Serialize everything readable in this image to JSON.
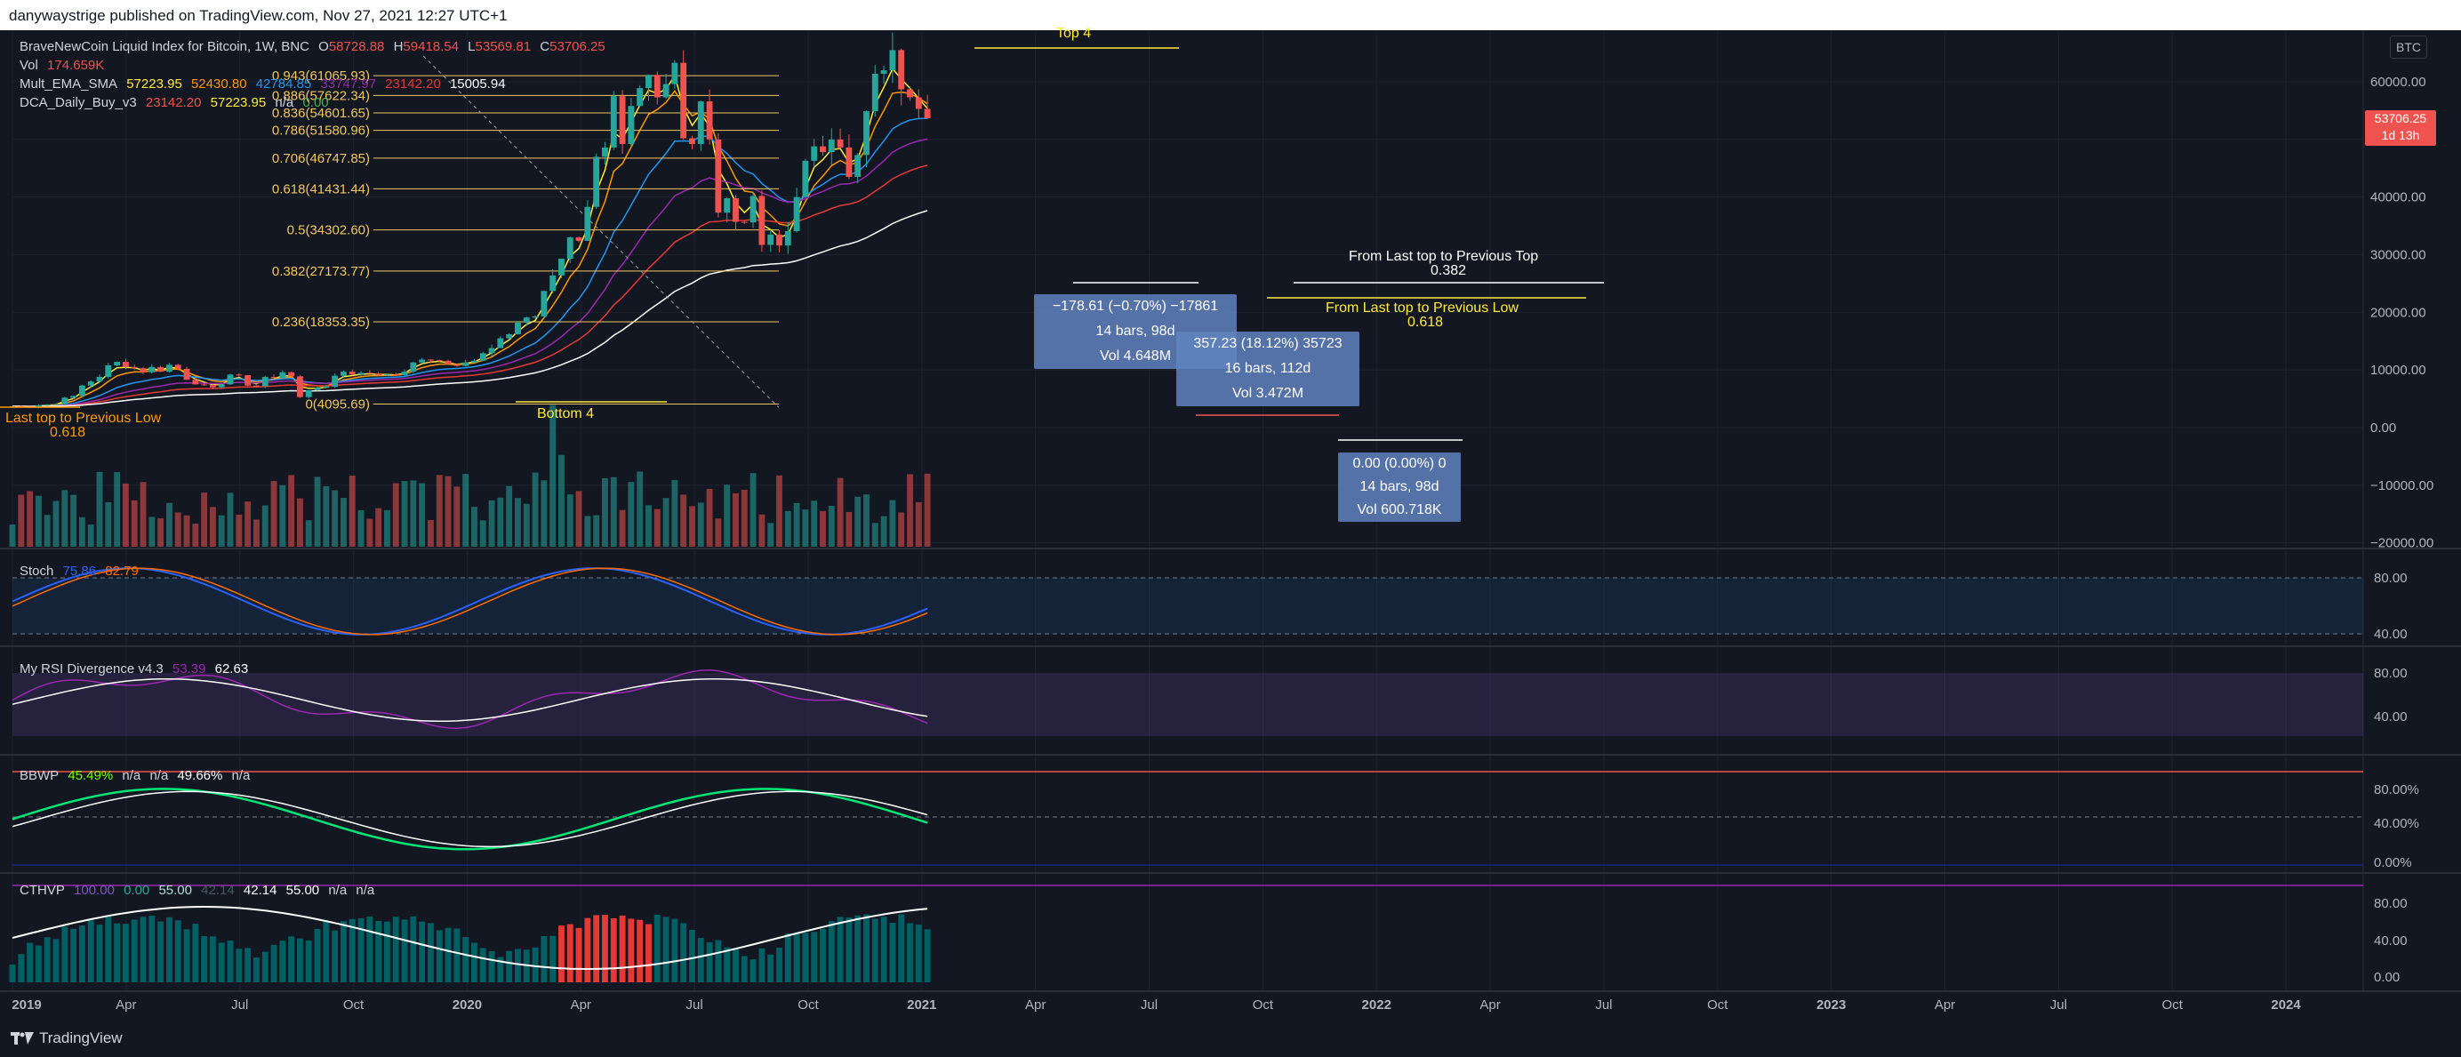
{
  "header": {
    "publisher": "danywaystrige published on TradingView.com, Nov 27, 2021 12:27 UTC+1"
  },
  "symbol_legend": {
    "name": "BraveNewCoin Liquid Index for Bitcoin, 1W, BNC",
    "o_label": "O",
    "o": "58728.88",
    "h_label": "H",
    "h": "59418.54",
    "l_label": "L",
    "l": "53569.81",
    "c_label": "C",
    "c": "53706.25"
  },
  "indicator_legends": {
    "vol": {
      "label": "Vol",
      "value": "174.659K"
    },
    "mult_ema": {
      "label": "Mult_EMA_SMA",
      "v1": "57223.95",
      "v2": "52430.80",
      "v3": "42784.85",
      "v4": "33747.97",
      "v5": "23142.20",
      "v6": "15005.94"
    },
    "dca": {
      "label": "DCA_Daily_Buy_v3",
      "v1": "23142.20",
      "v2": "57223.95",
      "v3": "n/a",
      "v4": "0.00"
    },
    "stoch": {
      "label": "Stoch",
      "v1": "75.86",
      "v2": "82.79"
    },
    "rsi": {
      "label": "My RSI Divergence v4.3",
      "v1": "53.39",
      "v2": "62.63"
    },
    "bbwp": {
      "label": "BBWP",
      "v1": "45.49%",
      "v2": "n/a",
      "v3": "n/a",
      "v4": "49.66%",
      "v5": "n/a"
    },
    "cthvp": {
      "label": "CTHVP",
      "v1": "100.00",
      "v2": "0.00",
      "v3": "55.00",
      "v4": "42.14",
      "v5": "42.14",
      "v6": "55.00",
      "v7": "n/a",
      "v8": "n/a"
    }
  },
  "fib_levels": [
    {
      "ratio": "0.943",
      "value": "61065.93",
      "price": 61065.93
    },
    {
      "ratio": "0.886",
      "value": "57622.34",
      "price": 57622.34
    },
    {
      "ratio": "0.836",
      "value": "54601.65",
      "price": 54601.65
    },
    {
      "ratio": "0.786",
      "value": "51580.96",
      "price": 51580.96
    },
    {
      "ratio": "0.706",
      "value": "46747.85",
      "price": 46747.85
    },
    {
      "ratio": "0.618",
      "value": "41431.44",
      "price": 41431.44
    },
    {
      "ratio": "0.5",
      "value": "34302.60",
      "price": 34302.6
    },
    {
      "ratio": "0.382",
      "value": "27173.77",
      "price": 27173.77
    },
    {
      "ratio": "0.236",
      "value": "18353.35",
      "price": 18353.35
    },
    {
      "ratio": "0",
      "value": "4095.69",
      "price": 4095.69
    }
  ],
  "annotations": {
    "top4": "Top 4",
    "bottom4": "Bottom 4",
    "left_label_1": "Last top to Previous Low",
    "left_label_2": "0.618",
    "right_top_1": "From Last top to Previous Top",
    "right_top_2": "0.382",
    "right_low_1": "From Last top to Previous Low",
    "right_low_2": "0.618"
  },
  "measure_boxes": [
    {
      "line1": "−178.61 (−0.70%) −17861",
      "line2": "14 bars, 98d",
      "line3": "Vol 4.648M"
    },
    {
      "line1": "357.23 (18.12%) 35723",
      "line2": "16 bars, 112d",
      "line3": "Vol 3.472M"
    },
    {
      "line1": "0.00 (0.00%) 0",
      "line2": "14 bars, 98d",
      "line3": "Vol 600.718K"
    }
  ],
  "price_axis": {
    "symbol_badge": "BTC",
    "last_price": "53706.25",
    "countdown": "1d 13h",
    "ticks": [
      "60000.00",
      "50000.00",
      "40000.00",
      "30000.00",
      "20000.00",
      "10000.00",
      "0.00",
      "−10000.00",
      "−20000.00"
    ]
  },
  "pane_axes": {
    "stoch": [
      "80.00",
      "40.00"
    ],
    "rsi": [
      "80.00",
      "40.00"
    ],
    "bbwp": [
      "80.00%",
      "40.00%",
      "0.00%"
    ],
    "cthvp": [
      "80.00",
      "40.00",
      "0.00"
    ]
  },
  "time_axis": [
    "2019",
    "Apr",
    "Jul",
    "Oct",
    "2020",
    "Apr",
    "Jul",
    "Oct",
    "2021",
    "Apr",
    "Jul",
    "Oct",
    "2022",
    "Apr",
    "Jul",
    "Oct",
    "2023",
    "Apr",
    "Jul",
    "Oct",
    "2024"
  ],
  "footer": {
    "brand": "TradingView"
  },
  "colors": {
    "background": "#131722",
    "up": "#26a69a",
    "down": "#ef5350",
    "fib": "#f0c75e",
    "accent": "#2962ff"
  },
  "chart_data": {
    "type": "candlestick",
    "title": "BraveNewCoin Liquid Index for Bitcoin, 1W, BNC",
    "x_range": [
      "2019-01",
      "2024-02"
    ],
    "y_range": [
      -20000,
      66000
    ],
    "close_series_weekly_approx": [
      3700,
      3600,
      3500,
      3900,
      4000,
      4100,
      5200,
      5500,
      7300,
      8000,
      8800,
      10800,
      11400,
      10500,
      10300,
      9600,
      10500,
      9700,
      10900,
      10200,
      8300,
      7500,
      7400,
      7000,
      7500,
      9200,
      9100,
      7300,
      7200,
      8800,
      8600,
      9600,
      8900,
      5300,
      6500,
      6900,
      7100,
      9000,
      9700,
      9200,
      9500,
      9400,
      9100,
      9200,
      9100,
      9700,
      11300,
      11800,
      11700,
      11600,
      11000,
      10700,
      11300,
      11600,
      12900,
      13800,
      15500,
      16200,
      18200,
      19100,
      19300,
      23700,
      26400,
      29300,
      33000,
      32400,
      38300,
      47000,
      48600,
      57500,
      49200,
      55800,
      58900,
      61200,
      57300,
      59600,
      63300,
      50200,
      49200,
      56600,
      50000,
      37300,
      39800,
      35700,
      35600,
      40200,
      31700,
      33500,
      31600,
      34100,
      40000,
      46300,
      48800,
      47800,
      50000,
      48600,
      43500,
      47300,
      54900,
      61400,
      62000,
      65500,
      58700,
      57300,
      55300,
      53700
    ]
  }
}
